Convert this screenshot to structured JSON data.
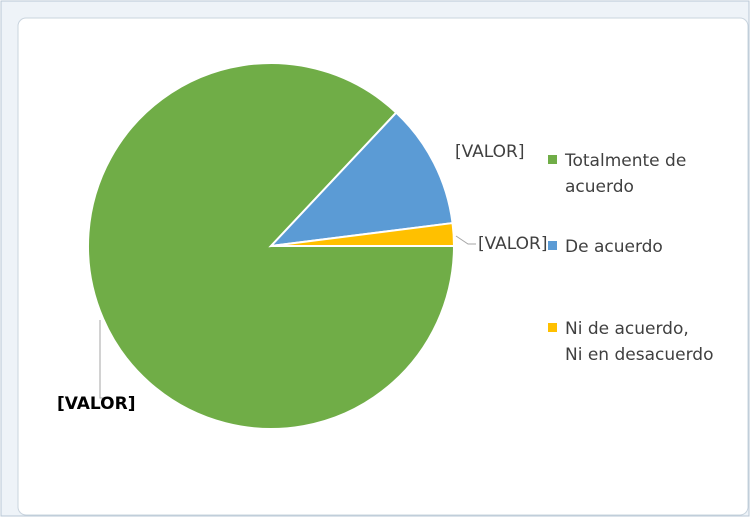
{
  "chart_data": {
    "type": "pie",
    "categories": [
      "Totalmente de acuerdo",
      "De acuerdo",
      "Ni de acuerdo, Ni en desacuerdo"
    ],
    "values": [
      87,
      11,
      2
    ],
    "value_labels": [
      "[VALOR]",
      "[VALOR]",
      "[VALOR]"
    ],
    "colors": [
      "#70ad47",
      "#5b9bd5",
      "#ffc000"
    ],
    "legend": "right"
  }
}
